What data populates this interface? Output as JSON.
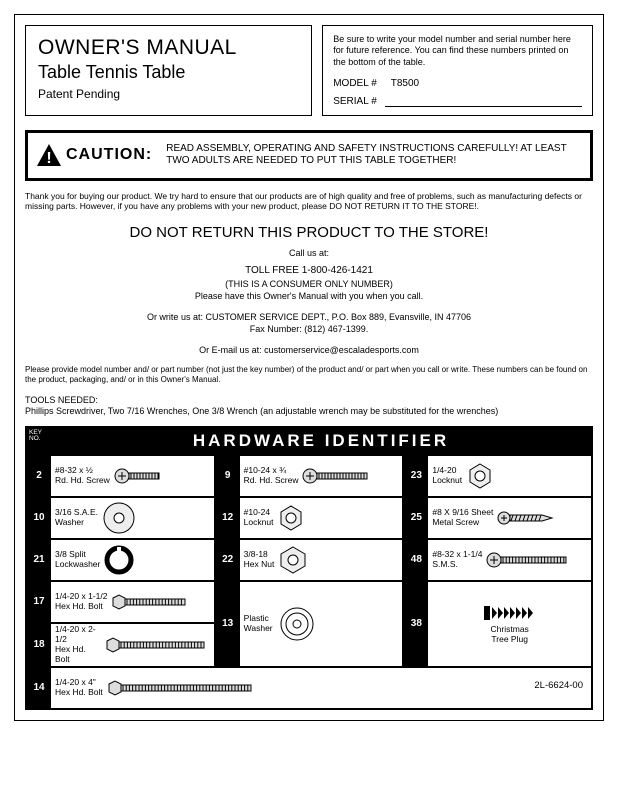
{
  "header": {
    "title_line1": "OWNER'S MANUAL",
    "title_line2": "Table Tennis Table",
    "title_line3": "Patent Pending",
    "model_note": "Be sure to write your model number and serial number here for future reference. You can find these numbers printed on the bottom of the table.",
    "model_label": "MODEL #",
    "model_value": "T8500",
    "serial_label": "SERIAL #"
  },
  "caution": {
    "word": "CAUTION:",
    "text": "READ ASSEMBLY, OPERATING AND SAFETY INSTRUCTIONS CAREFULLY! AT LEAST TWO ADULTS ARE NEEDED TO PUT THIS TABLE TOGETHER!"
  },
  "thank_you": "Thank you for buying our product. We try hard to ensure that our products are of high quality and free of problems, such as manufacturing defects or missing parts. However, if you have any problems with your new product, please DO NOT RETURN IT TO THE STORE!.",
  "return_warning": "DO NOT RETURN THIS PRODUCT TO THE STORE!",
  "contact": {
    "call_us": "Call us at:",
    "toll_free": "TOLL FREE 1-800-426-1421",
    "consumer_only": "(THIS IS A CONSUMER ONLY NUMBER)",
    "have_manual": "Please have this Owner's Manual with you when you call.",
    "write_us": "Or write us at: CUSTOMER SERVICE DEPT., P.O. Box 889, Evansville, IN 47706",
    "fax": "Fax Number: (812) 467-1399.",
    "email": "Or E-mail us at: customerservice@escaladesports.com"
  },
  "provide_note": "Please provide model number and/ or part number (not just the key number) of the product and/ or part when you call or write. These numbers can be found on the product, packaging, and/ or in this Owner's Manual.",
  "tools": {
    "label": "TOOLS NEEDED:",
    "text": "Phillips Screwdriver, Two 7/16 Wrenches, One 3/8 Wrench (an adjustable wrench may be substituted for the wrenches)"
  },
  "hardware": {
    "key_no_label": "KEY NO.",
    "title": "HARDWARE IDENTIFIER",
    "col1": [
      {
        "key": "2",
        "line1": "#8-32 x ½",
        "line2": "Rd. Hd. Screw",
        "icon": "screw-short"
      },
      {
        "key": "10",
        "line1": "3/16 S.A.E.",
        "line2": "Washer",
        "icon": "washer"
      },
      {
        "key": "21",
        "line1": "3/8 Split",
        "line2": "Lockwasher",
        "icon": "split-washer"
      },
      {
        "key": "17",
        "line1": "1/4-20 x 1-1/2",
        "line2": "Hex Hd. Bolt",
        "icon": "hex-bolt-short"
      },
      {
        "key": "18",
        "line1": "1/4-20 x 2-1/2",
        "line2": "Hex Hd. Bolt",
        "icon": "hex-bolt-med"
      }
    ],
    "col1_bottom": {
      "key": "14",
      "line1": "1/4-20 x 4\"",
      "line2": "Hex Hd. Bolt",
      "icon": "hex-bolt-long"
    },
    "col2": [
      {
        "key": "9",
        "line1": "#10-24 x ¾",
        "line2": "Rd. Hd. Screw",
        "icon": "screw-med"
      },
      {
        "key": "12",
        "line1": "#10-24",
        "line2": "Locknut",
        "icon": "locknut"
      },
      {
        "key": "22",
        "line1": "3/8-18",
        "line2": "Hex Nut",
        "icon": "hexnut"
      }
    ],
    "col3": [
      {
        "key": "23",
        "line1": "1/4-20",
        "line2": "Locknut",
        "icon": "locknut"
      },
      {
        "key": "25",
        "line1": "#8 X 9/16 Sheet",
        "line2": "Metal Screw",
        "icon": "sheet-screw"
      },
      {
        "key": "48",
        "line1": "#8-32 x 1-1/4",
        "line2": "S.M.S.",
        "icon": "sms-screw"
      }
    ],
    "washer_row": {
      "key13": "13",
      "plastic_washer": "Plastic Washer",
      "key38": "38",
      "tree_plug": "Christmas Tree Plug"
    },
    "doc_no": "2L-6624-00"
  }
}
